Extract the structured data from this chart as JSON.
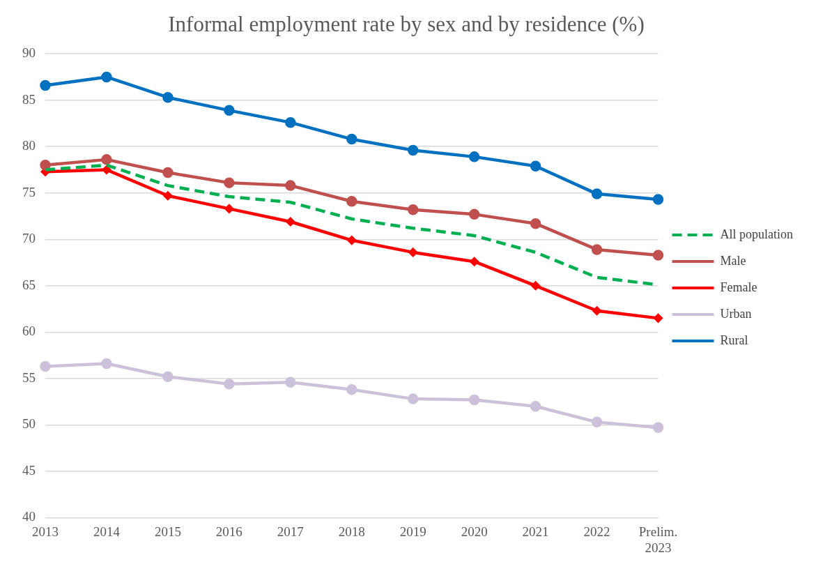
{
  "chart_data": {
    "type": "line",
    "title": "Informal employment rate by sex and by residence (%)",
    "categories": [
      "2013",
      "2014",
      "2015",
      "2016",
      "2017",
      "2018",
      "2019",
      "2020",
      "2021",
      "2022",
      "Prelim. 2023"
    ],
    "series": [
      {
        "name": "All population",
        "color": "#00b050",
        "line_style": "dashed",
        "marker": "none",
        "values": [
          77.5,
          78.0,
          75.8,
          74.6,
          74.0,
          72.2,
          71.2,
          70.4,
          68.6,
          65.9,
          65.1
        ]
      },
      {
        "name": "Male",
        "color": "#c0504d",
        "line_style": "solid",
        "marker": "circle",
        "values": [
          78.0,
          78.6,
          77.2,
          76.1,
          75.8,
          74.1,
          73.2,
          72.7,
          71.7,
          68.9,
          68.3
        ]
      },
      {
        "name": "Female",
        "color": "#ff0000",
        "line_style": "solid",
        "marker": "diamond",
        "values": [
          77.3,
          77.5,
          74.7,
          73.3,
          71.9,
          69.9,
          68.6,
          67.6,
          65.0,
          62.3,
          61.5
        ]
      },
      {
        "name": "Urban",
        "color": "#ccc0da",
        "line_style": "solid",
        "marker": "circle",
        "values": [
          56.3,
          56.6,
          55.2,
          54.4,
          54.6,
          53.8,
          52.8,
          52.7,
          52.0,
          50.3,
          49.7
        ]
      },
      {
        "name": "Rural",
        "color": "#0070c0",
        "line_style": "solid",
        "marker": "circle",
        "values": [
          86.6,
          87.5,
          85.3,
          83.9,
          82.6,
          80.8,
          79.6,
          78.9,
          77.9,
          74.9,
          74.3
        ]
      }
    ],
    "ylim": [
      40,
      90
    ],
    "yticks": [
      40,
      45,
      50,
      55,
      60,
      65,
      70,
      75,
      80,
      85,
      90
    ],
    "grid": "y",
    "legend": "right"
  }
}
